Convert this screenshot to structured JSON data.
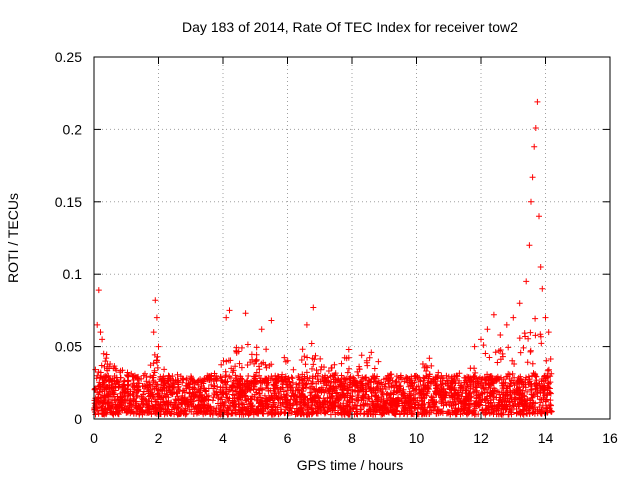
{
  "chart_data": {
    "type": "scatter",
    "title": "Day 183 of 2014, Rate Of TEC Index for receiver tow2",
    "xlabel": "GPS time / hours",
    "ylabel": "ROTI / TECUs",
    "xlim": [
      0,
      16
    ],
    "ylim": [
      0,
      0.25
    ],
    "x_ticks": [
      0,
      2,
      4,
      6,
      8,
      10,
      12,
      14,
      16
    ],
    "x_tick_labels": [
      "0",
      "2",
      "4",
      "6",
      "8",
      "10",
      "12",
      "14",
      "16"
    ],
    "y_ticks": [
      0,
      0.05,
      0.1,
      0.15,
      0.2,
      0.25
    ],
    "y_tick_labels": [
      "0",
      "0.05",
      "0.1",
      "0.15",
      "0.2",
      "0.25"
    ],
    "grid": true,
    "marker": "+",
    "series": [
      {
        "name": "ROTI",
        "color": "#ff0000",
        "data_range_hours": [
          0,
          14.2
        ],
        "baseline_range": [
          0.003,
          0.03
        ],
        "x": [
          0.1,
          0.15,
          0.2,
          0.25,
          0.3,
          0.35,
          0.5,
          0.6,
          1.85,
          1.9,
          1.95,
          2.0,
          4.1,
          4.2,
          4.7,
          5.2,
          5.5,
          6.6,
          6.8,
          7.9,
          8.3,
          8.6,
          10.2,
          10.4,
          11.8,
          12.0,
          12.2,
          12.4,
          12.6,
          12.8,
          13.0,
          13.2,
          13.4,
          13.5,
          13.55,
          13.6,
          13.65,
          13.7,
          13.75,
          13.8,
          13.85,
          13.9,
          14.0,
          14.1
        ],
        "y": [
          0.065,
          0.089,
          0.06,
          0.055,
          0.045,
          0.04,
          0.038,
          0.035,
          0.06,
          0.082,
          0.07,
          0.05,
          0.07,
          0.075,
          0.073,
          0.062,
          0.068,
          0.065,
          0.077,
          0.048,
          0.044,
          0.046,
          0.038,
          0.042,
          0.05,
          0.055,
          0.062,
          0.072,
          0.058,
          0.065,
          0.07,
          0.08,
          0.095,
          0.12,
          0.15,
          0.167,
          0.188,
          0.201,
          0.219,
          0.14,
          0.105,
          0.09,
          0.07,
          0.06
        ]
      }
    ]
  }
}
